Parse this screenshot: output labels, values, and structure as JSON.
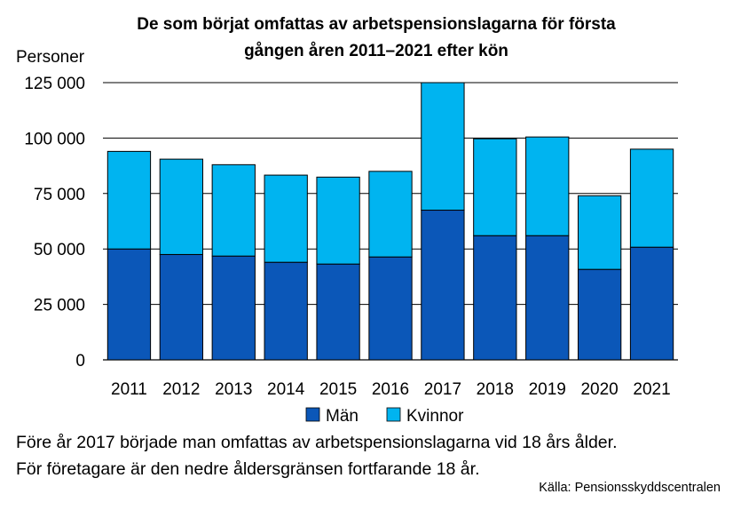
{
  "chart_data": {
    "type": "bar",
    "stacked": true,
    "title_lines": [
      "De som börjat omfattas av arbetspensionslagarna för första",
      "gången åren 2011–2021 efter kön"
    ],
    "ylabel": "Personer",
    "ylim": [
      0,
      125000
    ],
    "yticks": [
      0,
      25000,
      50000,
      75000,
      100000,
      125000
    ],
    "ytick_labels": [
      "0",
      "25 000",
      "50 000",
      "75 000",
      "100 000",
      "125 000"
    ],
    "grid": true,
    "legend_position": "bottom",
    "categories": [
      "2011",
      "2012",
      "2013",
      "2014",
      "2015",
      "2016",
      "2017",
      "2018",
      "2019",
      "2020",
      "2021"
    ],
    "series": [
      {
        "name": "Män",
        "color": "#0b57b8",
        "values": [
          50000,
          47500,
          46800,
          44000,
          43200,
          46400,
          67500,
          56000,
          56000,
          40800,
          50800
        ]
      },
      {
        "name": "Kvinnor",
        "color": "#00b4f0",
        "values": [
          44000,
          43000,
          41200,
          39300,
          39200,
          38600,
          57500,
          43700,
          44500,
          33200,
          44200
        ]
      }
    ]
  },
  "notes": [
    "Före år 2017 började man omfattas av arbetspensionslagarna vid 18 års ålder.",
    "För företagare är den nedre åldersgränsen fortfarande 18 år."
  ],
  "source": "Källa: Pensionsskyddscentralen"
}
